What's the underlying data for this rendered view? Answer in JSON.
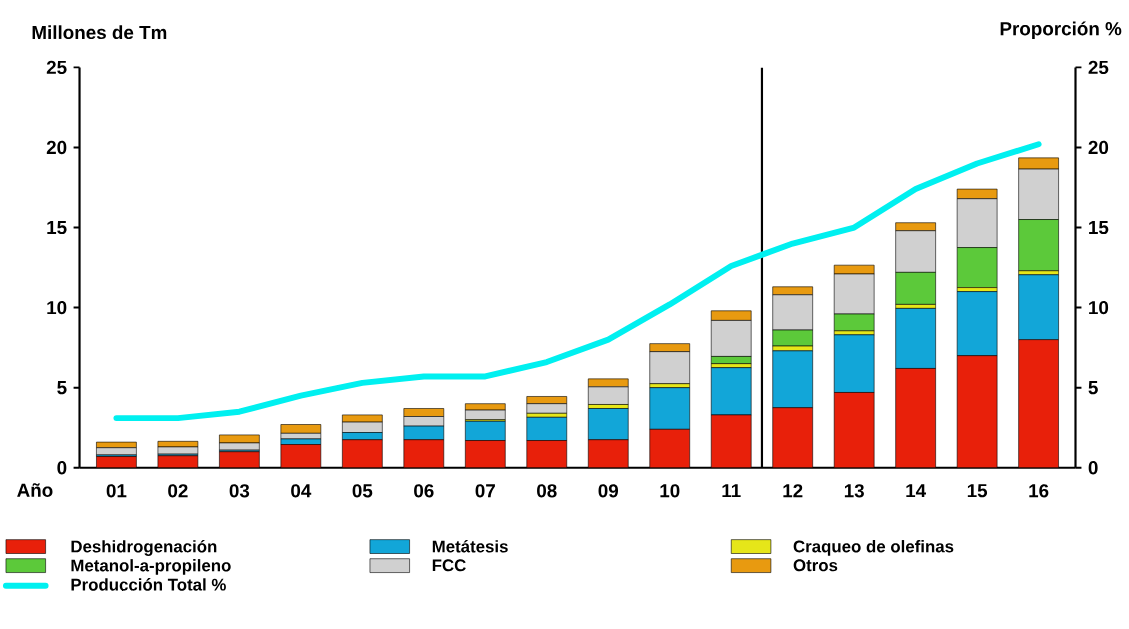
{
  "chart_data": {
    "type": "bar",
    "stacked": true,
    "xlabel": "Año",
    "ylabel": "Millones de Tm",
    "y2label": "Proporción %",
    "categories": [
      "01",
      "02",
      "03",
      "04",
      "05",
      "06",
      "07",
      "08",
      "09",
      "10",
      "11",
      "12",
      "13",
      "14",
      "15",
      "16"
    ],
    "series": [
      {
        "name": "Deshidrogenación",
        "color": "#e8200a",
        "values": [
          0.7,
          0.75,
          1.0,
          1.45,
          1.75,
          1.75,
          1.7,
          1.7,
          1.75,
          2.4,
          3.3,
          3.75,
          4.7,
          6.2,
          7.0,
          8.0
        ]
      },
      {
        "name": "Metátesis",
        "color": "#12a6d8",
        "values": [
          0.1,
          0.1,
          0.1,
          0.35,
          0.45,
          0.85,
          1.2,
          1.45,
          1.95,
          2.6,
          2.95,
          3.55,
          3.6,
          3.75,
          4.0,
          4.05
        ]
      },
      {
        "name": "Craqueo de olefinas",
        "color": "#e6e619",
        "values": [
          0,
          0,
          0,
          0,
          0,
          0,
          0.1,
          0.25,
          0.25,
          0.25,
          0.25,
          0.3,
          0.25,
          0.25,
          0.25,
          0.25
        ]
      },
      {
        "name": "Metanol-a-propileno",
        "color": "#5cc93a",
        "values": [
          0,
          0,
          0,
          0,
          0,
          0,
          0,
          0,
          0,
          0,
          0.45,
          1.0,
          1.05,
          2.0,
          2.5,
          3.2
        ]
      },
      {
        "name": "FCC",
        "color": "#d0d0d0",
        "values": [
          0.45,
          0.45,
          0.45,
          0.35,
          0.65,
          0.6,
          0.6,
          0.6,
          1.1,
          2.0,
          2.25,
          2.2,
          2.5,
          2.6,
          3.05,
          3.15
        ]
      },
      {
        "name": "Otros",
        "color": "#e89a10",
        "values": [
          0.35,
          0.35,
          0.5,
          0.55,
          0.45,
          0.5,
          0.4,
          0.45,
          0.5,
          0.5,
          0.6,
          0.5,
          0.55,
          0.5,
          0.6,
          0.7
        ]
      },
      {
        "name": "Producción Total %",
        "type": "line",
        "axis": "y2",
        "color": "#00f0f0",
        "values": [
          3.1,
          3.1,
          3.5,
          4.5,
          5.3,
          5.7,
          5.7,
          6.6,
          8.0,
          10.2,
          12.6,
          14.0,
          15.0,
          17.4,
          19.0,
          20.2
        ]
      }
    ],
    "ylim": [
      0,
      25
    ],
    "yticks": [
      0,
      5,
      10,
      15,
      20,
      25
    ],
    "y2lim": [
      0,
      25
    ],
    "y2ticks": [
      0,
      5,
      10,
      15,
      20,
      25
    ],
    "legend": "bottom",
    "grid": false
  }
}
